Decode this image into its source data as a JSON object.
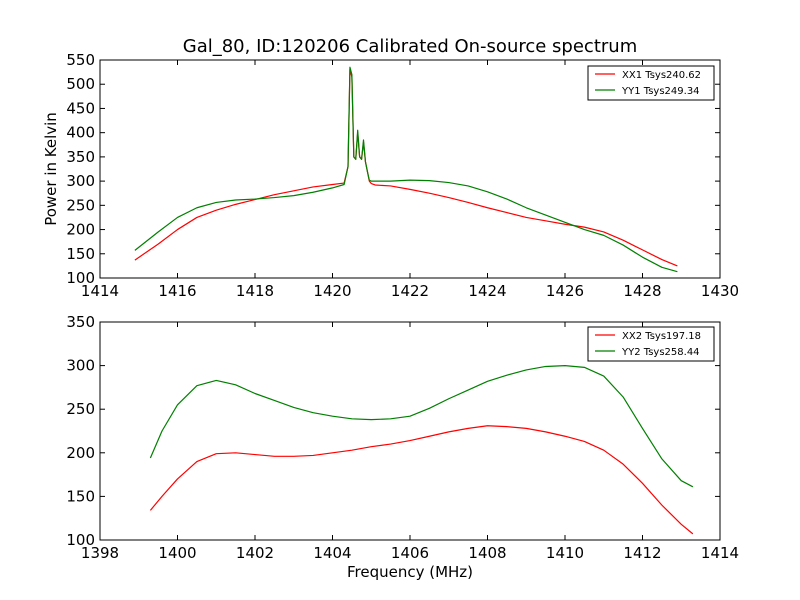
{
  "chart_data": [
    {
      "type": "line",
      "title": "Gal_80, ID:120206 Calibrated On-source spectrum",
      "xlabel": "",
      "ylabel": "Power in Kelvin",
      "xlim": [
        1414,
        1430
      ],
      "ylim": [
        100,
        550
      ],
      "x_ticks": [
        1414,
        1416,
        1418,
        1420,
        1422,
        1424,
        1426,
        1428,
        1430
      ],
      "y_ticks": [
        100,
        150,
        200,
        250,
        300,
        350,
        400,
        450,
        500,
        550
      ],
      "grid": false,
      "legend_position": "top-right",
      "series": [
        {
          "name": "XX1 Tsys240.62",
          "color": "#ff0000",
          "x": [
            1414.9,
            1415.5,
            1416.0,
            1416.5,
            1417.0,
            1417.5,
            1418.0,
            1418.5,
            1419.0,
            1419.5,
            1420.0,
            1420.3,
            1420.4,
            1420.45,
            1420.5,
            1420.55,
            1420.6,
            1420.65,
            1420.7,
            1420.75,
            1420.8,
            1420.85,
            1420.9,
            1420.95,
            1421.0,
            1421.1,
            1421.5,
            1422.0,
            1422.5,
            1423.0,
            1423.5,
            1424.0,
            1424.5,
            1425.0,
            1425.5,
            1426.0,
            1426.5,
            1427.0,
            1427.5,
            1428.0,
            1428.5,
            1428.9
          ],
          "y": [
            137,
            170,
            200,
            225,
            240,
            252,
            262,
            272,
            280,
            288,
            293,
            296,
            330,
            530,
            515,
            350,
            345,
            400,
            350,
            345,
            380,
            340,
            320,
            300,
            295,
            292,
            290,
            283,
            275,
            266,
            256,
            245,
            235,
            225,
            218,
            211,
            205,
            195,
            178,
            158,
            138,
            125
          ]
        },
        {
          "name": "YY1 Tsys249.34",
          "color": "#008000",
          "x": [
            1414.9,
            1415.5,
            1416.0,
            1416.5,
            1417.0,
            1417.5,
            1418.0,
            1418.5,
            1419.0,
            1419.5,
            1420.0,
            1420.3,
            1420.4,
            1420.45,
            1420.5,
            1420.55,
            1420.6,
            1420.65,
            1420.7,
            1420.75,
            1420.8,
            1420.85,
            1420.9,
            1420.95,
            1421.0,
            1421.1,
            1421.5,
            1422.0,
            1422.5,
            1423.0,
            1423.5,
            1424.0,
            1424.5,
            1425.0,
            1425.5,
            1426.0,
            1426.5,
            1427.0,
            1427.5,
            1428.0,
            1428.5,
            1428.9
          ],
          "y": [
            157,
            195,
            225,
            245,
            256,
            261,
            263,
            266,
            270,
            277,
            286,
            293,
            330,
            535,
            520,
            350,
            345,
            405,
            350,
            345,
            385,
            340,
            320,
            302,
            300,
            300,
            300,
            302,
            301,
            297,
            290,
            278,
            263,
            245,
            230,
            215,
            200,
            188,
            168,
            143,
            122,
            113
          ]
        }
      ]
    },
    {
      "type": "line",
      "title": "",
      "xlabel": "Frequency (MHz)",
      "ylabel": "",
      "xlim": [
        1398,
        1414
      ],
      "ylim": [
        100,
        350
      ],
      "x_ticks": [
        1398,
        1400,
        1402,
        1404,
        1406,
        1408,
        1410,
        1412,
        1414
      ],
      "y_ticks": [
        100,
        150,
        200,
        250,
        300,
        350
      ],
      "grid": false,
      "legend_position": "top-right",
      "series": [
        {
          "name": "XX2 Tsys197.18",
          "color": "#ff0000",
          "x": [
            1399.3,
            1399.6,
            1400.0,
            1400.5,
            1401.0,
            1401.5,
            1402.0,
            1402.5,
            1403.0,
            1403.5,
            1404.0,
            1404.5,
            1405.0,
            1405.5,
            1406.0,
            1406.5,
            1407.0,
            1407.5,
            1408.0,
            1408.5,
            1409.0,
            1409.5,
            1410.0,
            1410.5,
            1411.0,
            1411.5,
            1412.0,
            1412.5,
            1413.0,
            1413.3
          ],
          "y": [
            134,
            150,
            170,
            190,
            199,
            200,
            198,
            196,
            196,
            197,
            200,
            203,
            207,
            210,
            214,
            219,
            224,
            228,
            231,
            230,
            228,
            224,
            219,
            213,
            203,
            187,
            165,
            140,
            118,
            107
          ]
        },
        {
          "name": "YY2 Tsys258.44",
          "color": "#008000",
          "x": [
            1399.3,
            1399.6,
            1400.0,
            1400.5,
            1401.0,
            1401.5,
            1402.0,
            1402.5,
            1403.0,
            1403.5,
            1404.0,
            1404.5,
            1405.0,
            1405.5,
            1406.0,
            1406.5,
            1407.0,
            1407.5,
            1408.0,
            1408.5,
            1409.0,
            1409.5,
            1410.0,
            1410.5,
            1411.0,
            1411.5,
            1412.0,
            1412.5,
            1413.0,
            1413.3
          ],
          "y": [
            194,
            225,
            255,
            277,
            283,
            278,
            268,
            260,
            252,
            246,
            242,
            239,
            238,
            239,
            242,
            251,
            262,
            272,
            282,
            289,
            295,
            299,
            300,
            298,
            288,
            264,
            228,
            193,
            168,
            161
          ]
        }
      ]
    }
  ]
}
